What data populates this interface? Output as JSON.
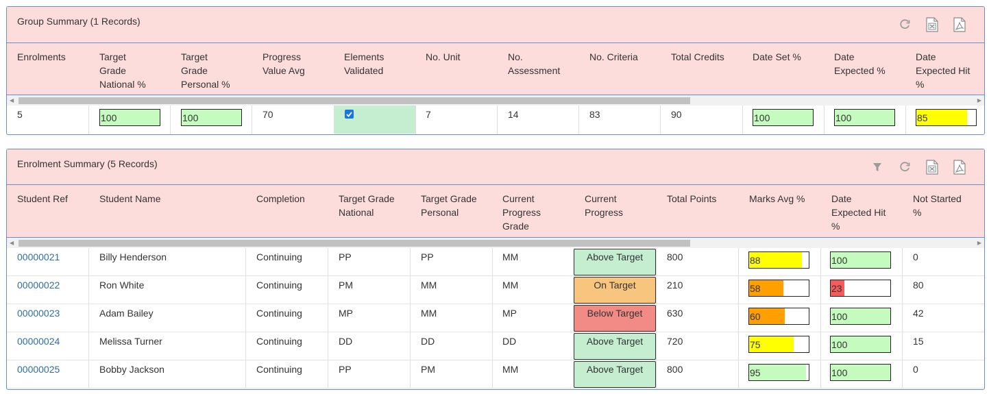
{
  "group": {
    "title": "Group Summary (1 Records)",
    "columns": [
      [
        "Enrolments"
      ],
      [
        "Target",
        "Grade",
        "National %"
      ],
      [
        "Target",
        "Grade",
        "Personal %"
      ],
      [
        "Progress",
        "Value Avg"
      ],
      [
        "Elements",
        "Validated"
      ],
      [
        "No. Unit"
      ],
      [
        "No.",
        "Assessment"
      ],
      [
        "No. Criteria"
      ],
      [
        "Total Credits"
      ],
      [
        "Date Set %"
      ],
      [
        "Date",
        "Expected %"
      ],
      [
        "Date",
        "Expected Hit",
        "%"
      ]
    ],
    "row": {
      "enrolments": "5",
      "target_national": 100,
      "target_personal": 100,
      "progress_value_avg": "70",
      "elements_validated": true,
      "no_unit": "7",
      "no_assessment": "14",
      "no_criteria": "83",
      "total_credits": "90",
      "date_set": 100,
      "date_expected": 100,
      "date_expected_hit": 85
    }
  },
  "enrolment": {
    "title": "Enrolment Summary (5 Records)",
    "columns": [
      [
        "Student Ref"
      ],
      [
        "Student Name"
      ],
      [
        "Completion"
      ],
      [
        "Target Grade",
        "National"
      ],
      [
        "Target Grade",
        "Personal"
      ],
      [
        "Current",
        "Progress",
        "Grade"
      ],
      [
        "Current",
        "Progress"
      ],
      [
        "Total Points"
      ],
      [
        "Marks Avg %"
      ],
      [
        "Date",
        "Expected Hit",
        "%"
      ],
      [
        "Not Started",
        "%"
      ]
    ],
    "rows": [
      {
        "ref": "00000021",
        "name": "Billy Henderson",
        "completion": "Continuing",
        "tg_national": "PP",
        "tg_personal": "PP",
        "cp_grade": "MM",
        "progress": "Above Target",
        "total_points": "800",
        "marks_avg": 88,
        "date_hit": 100,
        "not_started": "0"
      },
      {
        "ref": "00000022",
        "name": "Ron White",
        "completion": "Continuing",
        "tg_national": "PM",
        "tg_personal": "MM",
        "cp_grade": "MM",
        "progress": "On Target",
        "total_points": "210",
        "marks_avg": 58,
        "date_hit": 23,
        "not_started": "80"
      },
      {
        "ref": "00000023",
        "name": "Adam Bailey",
        "completion": "Continuing",
        "tg_national": "MP",
        "tg_personal": "MM",
        "cp_grade": "MP",
        "progress": "Below Target",
        "total_points": "630",
        "marks_avg": 60,
        "date_hit": 100,
        "not_started": "42"
      },
      {
        "ref": "00000024",
        "name": "Melissa Turner",
        "completion": "Continuing",
        "tg_national": "DD",
        "tg_personal": "DD",
        "cp_grade": "DD",
        "progress": "Above Target",
        "total_points": "720",
        "marks_avg": 75,
        "date_hit": 100,
        "not_started": "15"
      },
      {
        "ref": "00000025",
        "name": "Bobby Jackson",
        "completion": "Continuing",
        "tg_national": "PP",
        "tg_personal": "PM",
        "cp_grade": "MM",
        "progress": "Above Target",
        "total_points": "800",
        "marks_avg": 95,
        "date_hit": 100,
        "not_started": "0"
      }
    ]
  },
  "icons": {
    "refresh": "refresh-icon",
    "excel": "excel-export-icon",
    "pdf": "pdf-export-icon",
    "filter": "filter-icon"
  },
  "colors": {
    "header_bg": "#fddddb",
    "border": "#6c8dbf",
    "meter_green": "#c6fbc0",
    "meter_yellow": "#ffff00",
    "meter_orange": "#ff9f00",
    "meter_red": "#f45b5b",
    "badge_above": "#c5eed0",
    "badge_on": "#f7c57e",
    "badge_below": "#f28b86",
    "link": "#2e6da4"
  }
}
